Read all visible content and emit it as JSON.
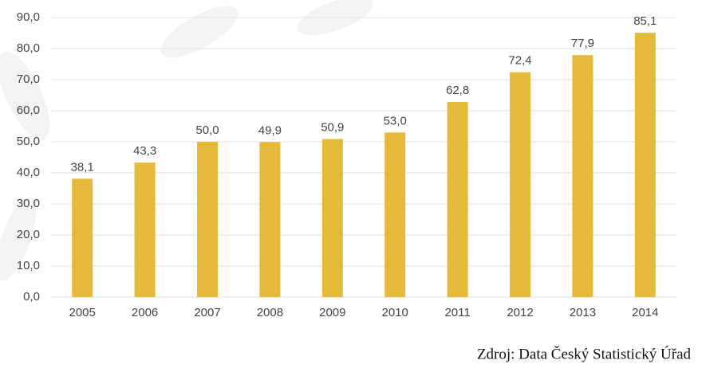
{
  "chart_data": {
    "type": "bar",
    "categories": [
      "2005",
      "2006",
      "2007",
      "2008",
      "2009",
      "2010",
      "2011",
      "2012",
      "2013",
      "2014"
    ],
    "values": [
      38.1,
      43.3,
      50.0,
      49.9,
      50.9,
      53.0,
      62.8,
      72.4,
      77.9,
      85.1
    ],
    "value_labels": [
      "38,1",
      "43,3",
      "50,0",
      "49,9",
      "50,9",
      "53,0",
      "62,8",
      "72,4",
      "77,9",
      "85,1"
    ],
    "color": "#e5b93a",
    "ylim": [
      0,
      90
    ],
    "yticks": [
      {
        "value": 0,
        "label": "0,0"
      },
      {
        "value": 10,
        "label": "10,0"
      },
      {
        "value": 20,
        "label": "20,0"
      },
      {
        "value": 30,
        "label": "30,0"
      },
      {
        "value": 40,
        "label": "40,0"
      },
      {
        "value": 50,
        "label": "50,0"
      },
      {
        "value": 60,
        "label": "60,0"
      },
      {
        "value": 70,
        "label": "70,0"
      },
      {
        "value": 80,
        "label": "80,0"
      },
      {
        "value": 90,
        "label": "90,0"
      }
    ],
    "grid": true,
    "source": "Zdroj: Data Český Statistický Úřad"
  }
}
